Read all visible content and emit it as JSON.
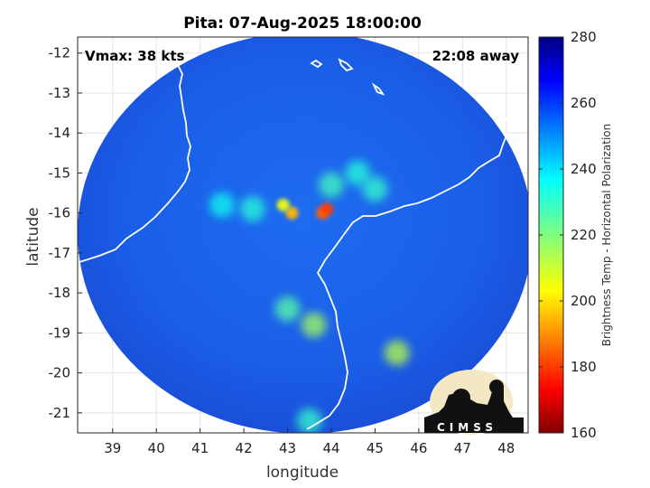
{
  "chart_data": {
    "type": "heatmap",
    "title": "Pita: 07-Aug-2025 18:00:00",
    "xlabel": "longitude",
    "ylabel": "latitude",
    "xlim": [
      38.2,
      48.5
    ],
    "ylim": [
      -21.5,
      -11.6
    ],
    "xticks": [
      39,
      40,
      41,
      42,
      43,
      44,
      45,
      46,
      47,
      48
    ],
    "yticks": [
      -12,
      -13,
      -14,
      -15,
      -16,
      -17,
      -18,
      -19,
      -20,
      -21
    ],
    "grid": true,
    "swath_center": [
      43.4,
      -16.5
    ],
    "swath_radius_deg": 5.2,
    "annotations": {
      "vmax": "Vmax: 38 kts",
      "time_offset": "22:08 away"
    },
    "colorbar": {
      "label": "Brightness Temp - Horizontal Polarization",
      "range": [
        160,
        280
      ],
      "ticks": [
        160,
        180,
        200,
        220,
        240,
        260,
        280
      ],
      "colormap": "jet"
    },
    "features": [
      {
        "lon": 43.8,
        "lat": -16.0,
        "tb": 185
      },
      {
        "lon": 43.9,
        "lat": -15.9,
        "tb": 180
      },
      {
        "lon": 43.1,
        "lat": -16.0,
        "tb": 195
      },
      {
        "lon": 42.9,
        "lat": -15.8,
        "tb": 205
      },
      {
        "lon": 44.0,
        "lat": -15.3,
        "tb": 228
      },
      {
        "lon": 44.6,
        "lat": -15.0,
        "tb": 232
      },
      {
        "lon": 45.0,
        "lat": -15.4,
        "tb": 230
      },
      {
        "lon": 43.0,
        "lat": -18.4,
        "tb": 225
      },
      {
        "lon": 43.6,
        "lat": -18.8,
        "tb": 215
      },
      {
        "lon": 45.5,
        "lat": -19.5,
        "tb": 212
      },
      {
        "lon": 43.5,
        "lat": -21.2,
        "tb": 230
      },
      {
        "lon": 41.5,
        "lat": -15.8,
        "tb": 235
      },
      {
        "lon": 42.2,
        "lat": -15.9,
        "tb": 232
      }
    ]
  },
  "logo": {
    "text": "CIMSS"
  }
}
